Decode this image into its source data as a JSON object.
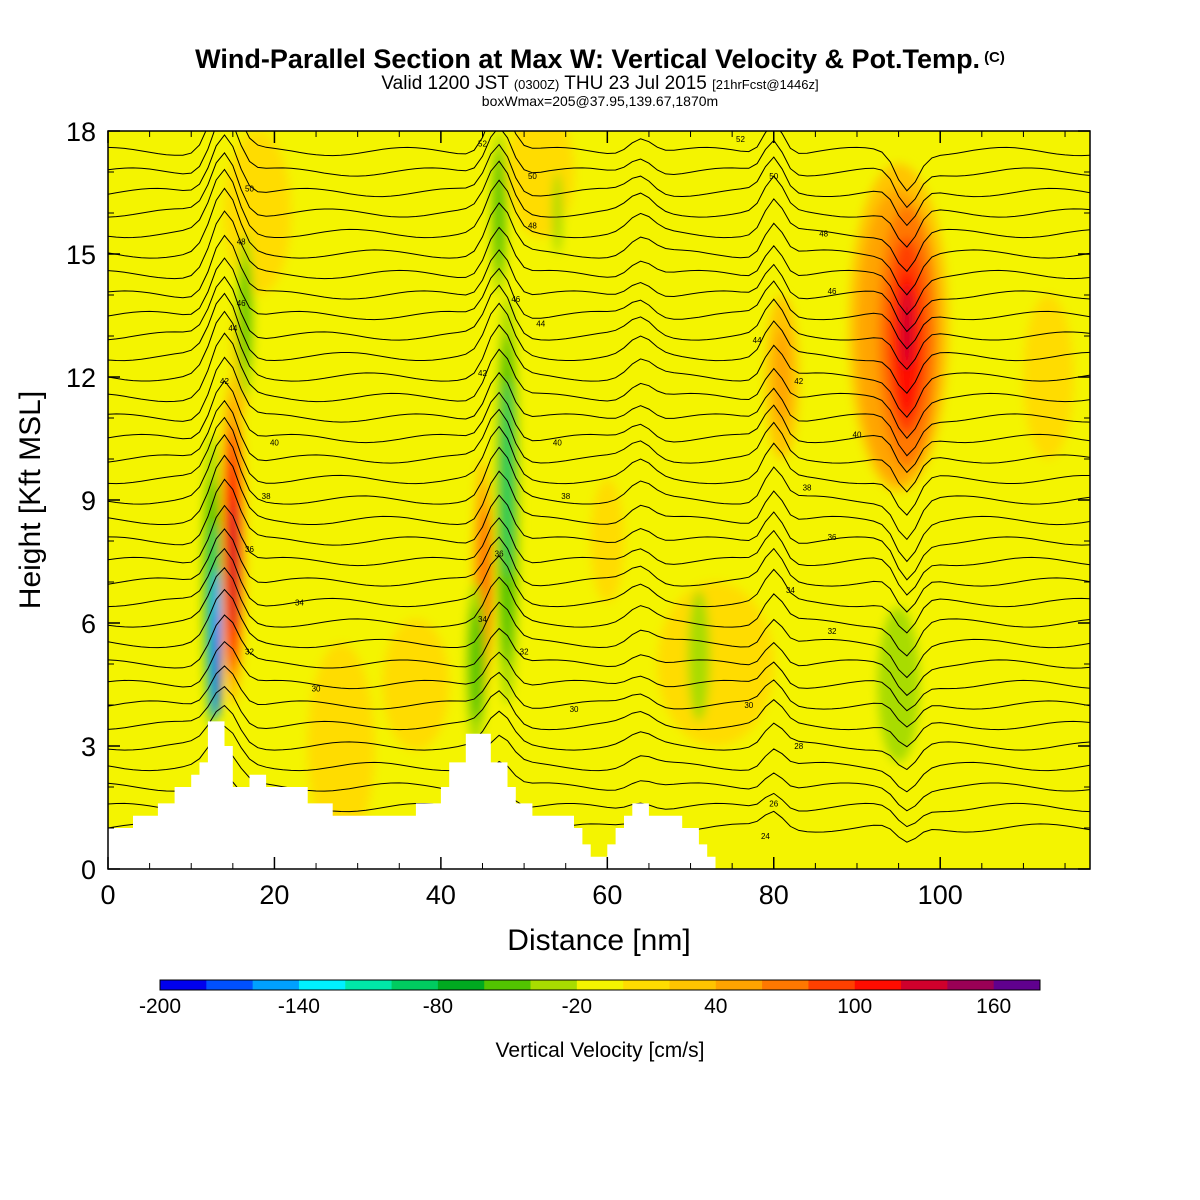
{
  "header": {
    "title_main": "Wind-Parallel Section at Max W: Vertical Velocity & Pot.Temp.",
    "title_mark": "(C)",
    "valid_prefix": "Valid 1200 JST",
    "valid_utc": "(0300Z)",
    "valid_date": "THU 23 Jul 2015",
    "forecast": "[21hrFcst@1446z]",
    "box_info": "boxWmax=205@37.95,139.67,1870m"
  },
  "chart_data": {
    "type": "heatmap",
    "xlabel": "Distance [nm]",
    "ylabel": "Height [Kft MSL]",
    "xlim": [
      0,
      118
    ],
    "ylim": [
      0,
      18
    ],
    "x_ticks": [
      0,
      20,
      40,
      60,
      80,
      100
    ],
    "y_ticks": [
      0,
      3,
      6,
      9,
      12,
      15,
      18
    ],
    "colorbar": {
      "label": "Vertical Velocity [cm/s]",
      "range": [
        -200,
        180
      ],
      "tick_labels": [
        -200,
        -140,
        -80,
        -20,
        40,
        100,
        160
      ],
      "colors": [
        "#0000ee",
        "#0050ff",
        "#00a0ff",
        "#00f0ff",
        "#00e8a8",
        "#00cc60",
        "#00aa20",
        "#52c400",
        "#a8dc00",
        "#f4f400",
        "#ffdc00",
        "#ffc400",
        "#ffa400",
        "#ff7800",
        "#ff4000",
        "#ff0c00",
        "#d0002c",
        "#9a0056",
        "#60008e"
      ]
    },
    "theta_labels": [
      {
        "x": 17,
        "y": 16.6,
        "text": "50"
      },
      {
        "x": 16,
        "y": 15.3,
        "text": "48"
      },
      {
        "x": 16,
        "y": 13.8,
        "text": "46"
      },
      {
        "x": 15,
        "y": 13.2,
        "text": "44"
      },
      {
        "x": 14,
        "y": 11.9,
        "text": "42"
      },
      {
        "x": 20,
        "y": 10.4,
        "text": "40"
      },
      {
        "x": 19,
        "y": 9.1,
        "text": "38"
      },
      {
        "x": 17,
        "y": 7.8,
        "text": "36"
      },
      {
        "x": 23,
        "y": 6.5,
        "text": "34"
      },
      {
        "x": 17,
        "y": 5.3,
        "text": "32"
      },
      {
        "x": 25,
        "y": 4.4,
        "text": "30"
      },
      {
        "x": 45,
        "y": 17.7,
        "text": "52"
      },
      {
        "x": 51,
        "y": 16.9,
        "text": "50"
      },
      {
        "x": 51,
        "y": 15.7,
        "text": "48"
      },
      {
        "x": 49,
        "y": 13.9,
        "text": "46"
      },
      {
        "x": 52,
        "y": 13.3,
        "text": "44"
      },
      {
        "x": 45,
        "y": 12.1,
        "text": "42"
      },
      {
        "x": 54,
        "y": 10.4,
        "text": "40"
      },
      {
        "x": 55,
        "y": 9.1,
        "text": "38"
      },
      {
        "x": 47,
        "y": 7.7,
        "text": "36"
      },
      {
        "x": 45,
        "y": 6.1,
        "text": "34"
      },
      {
        "x": 50,
        "y": 5.3,
        "text": "32"
      },
      {
        "x": 56,
        "y": 3.9,
        "text": "30"
      },
      {
        "x": 76,
        "y": 17.8,
        "text": "52"
      },
      {
        "x": 80,
        "y": 16.9,
        "text": "50"
      },
      {
        "x": 86,
        "y": 15.5,
        "text": "48"
      },
      {
        "x": 87,
        "y": 14.1,
        "text": "46"
      },
      {
        "x": 78,
        "y": 12.9,
        "text": "44"
      },
      {
        "x": 83,
        "y": 11.9,
        "text": "42"
      },
      {
        "x": 90,
        "y": 10.6,
        "text": "40"
      },
      {
        "x": 84,
        "y": 9.3,
        "text": "38"
      },
      {
        "x": 87,
        "y": 8.1,
        "text": "36"
      },
      {
        "x": 82,
        "y": 6.8,
        "text": "34"
      },
      {
        "x": 87,
        "y": 5.8,
        "text": "32"
      },
      {
        "x": 77,
        "y": 4.0,
        "text": "30"
      },
      {
        "x": 83,
        "y": 3.0,
        "text": "28"
      },
      {
        "x": 80,
        "y": 1.6,
        "text": "26"
      },
      {
        "x": 79,
        "y": 0.8,
        "text": "24"
      }
    ]
  }
}
